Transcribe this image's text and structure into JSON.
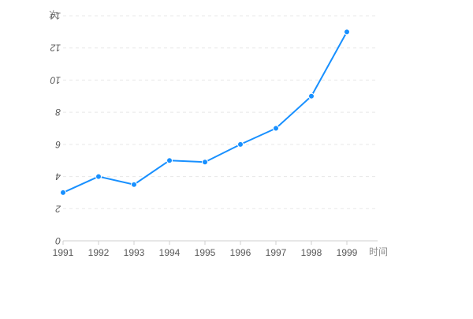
{
  "chart_data": {
    "type": "line",
    "x": [
      "1991",
      "1992",
      "1993",
      "1994",
      "1995",
      "1996",
      "1997",
      "1998",
      "1999"
    ],
    "series": [
      {
        "values": [
          3.0,
          4.0,
          3.5,
          5.0,
          4.9,
          6.0,
          7.0,
          9.0,
          13.0
        ],
        "color": "#1890ff"
      }
    ],
    "y_ticks": [
      "0",
      "2",
      "4",
      "6",
      "8",
      "10",
      "12",
      "14"
    ],
    "y_tick_values": [
      0,
      2,
      4,
      6,
      8,
      10,
      12,
      14
    ],
    "ylim": [
      0,
      14
    ],
    "y_unit": "次",
    "x_unit": "时间",
    "grid": true,
    "y_tick_labels_flipped": true
  }
}
